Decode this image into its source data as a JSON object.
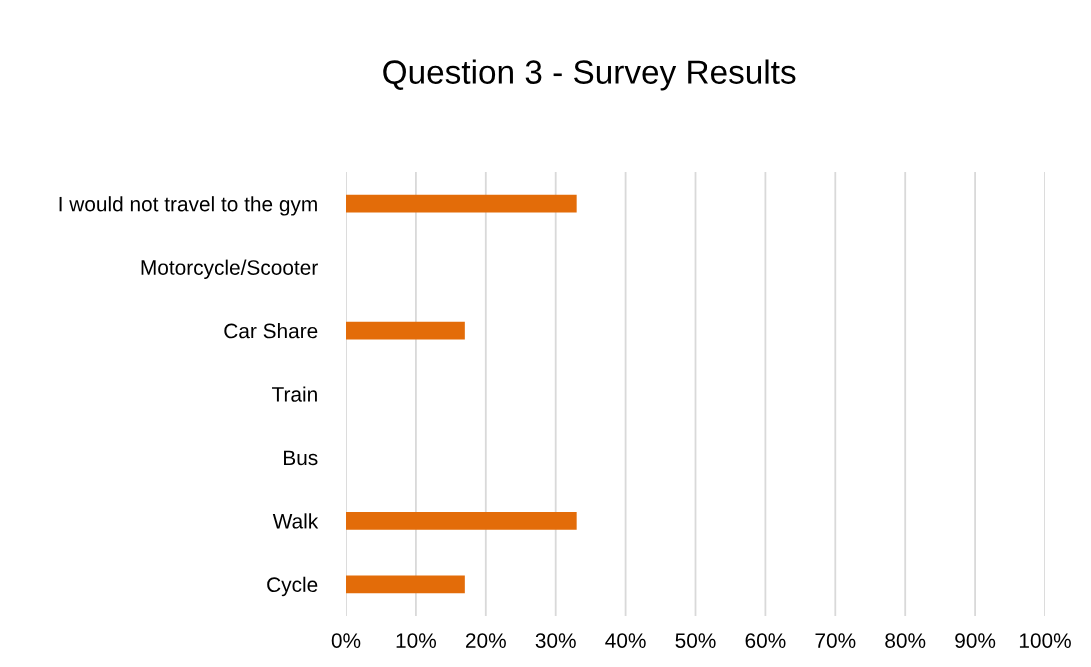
{
  "chart_data": {
    "type": "bar",
    "orientation": "horizontal",
    "title": "Question 3 - Survey Results",
    "categories": [
      "I would not travel to the gym",
      "Motorcycle/Scooter",
      "Car Share",
      "Train",
      "Bus",
      "Walk",
      "Cycle"
    ],
    "values": [
      33,
      0,
      17,
      0,
      0,
      33,
      17
    ],
    "color": "#e36c09",
    "xlim": [
      0,
      100
    ],
    "xticks": [
      {
        "value": 0,
        "label": "0%"
      },
      {
        "value": 10,
        "label": "10%"
      },
      {
        "value": 20,
        "label": "20%"
      },
      {
        "value": 30,
        "label": "30%"
      },
      {
        "value": 40,
        "label": "40%"
      },
      {
        "value": 50,
        "label": "50%"
      },
      {
        "value": 60,
        "label": "60%"
      },
      {
        "value": 70,
        "label": "70%"
      },
      {
        "value": 80,
        "label": "80%"
      },
      {
        "value": 90,
        "label": "90%"
      },
      {
        "value": 100,
        "label": "100%"
      }
    ],
    "grid": "x"
  }
}
